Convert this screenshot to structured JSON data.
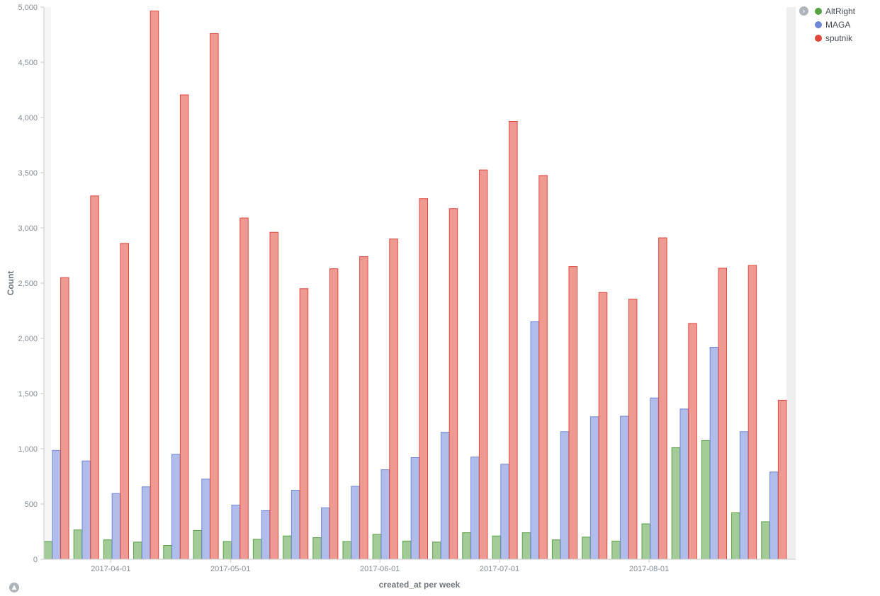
{
  "chart_data": {
    "type": "bar",
    "title": "",
    "xlabel": "created_at per week",
    "ylabel": "Count",
    "ylim": [
      0,
      5000
    ],
    "y_ticks": [
      0,
      500,
      1000,
      1500,
      2000,
      2500,
      3000,
      3500,
      4000,
      4500,
      5000
    ],
    "y_tick_labels": [
      "0",
      "500",
      "1,000",
      "1,500",
      "2,000",
      "2,500",
      "3,000",
      "3,500",
      "4,000",
      "4,500",
      "5,000"
    ],
    "x_tick_labels": [
      "2017-04-01",
      "2017-05-01",
      "2017-06-01",
      "2017-07-01",
      "2017-08-01"
    ],
    "x_tick_after_week": [
      2,
      6,
      11,
      15,
      20
    ],
    "week_count": 25,
    "grid": false,
    "legend_position": "top-right",
    "series": [
      {
        "name": "AltRight",
        "color": "#57a043",
        "values": [
          160,
          265,
          175,
          155,
          125,
          260,
          160,
          180,
          210,
          195,
          160,
          225,
          165,
          155,
          240,
          210,
          240,
          175,
          200,
          165,
          320,
          1010,
          1075,
          420,
          340
        ]
      },
      {
        "name": "MAGA",
        "color": "#6f87d8",
        "values": [
          985,
          890,
          595,
          655,
          950,
          725,
          490,
          440,
          625,
          465,
          660,
          810,
          920,
          1150,
          925,
          860,
          2150,
          1155,
          1290,
          1295,
          1460,
          1360,
          1920,
          1155,
          790
        ]
      },
      {
        "name": "sputnik",
        "color": "#e0473b",
        "values": [
          2550,
          3290,
          2860,
          4965,
          4205,
          4760,
          3090,
          2960,
          2450,
          2630,
          2740,
          2900,
          3265,
          3175,
          3525,
          3965,
          3475,
          2650,
          2415,
          2355,
          2910,
          2135,
          2635,
          2660,
          1440
        ]
      }
    ]
  },
  "legend_toggle_icon": "chevron-right-icon",
  "collapse_icon": "chevron-up-icon"
}
